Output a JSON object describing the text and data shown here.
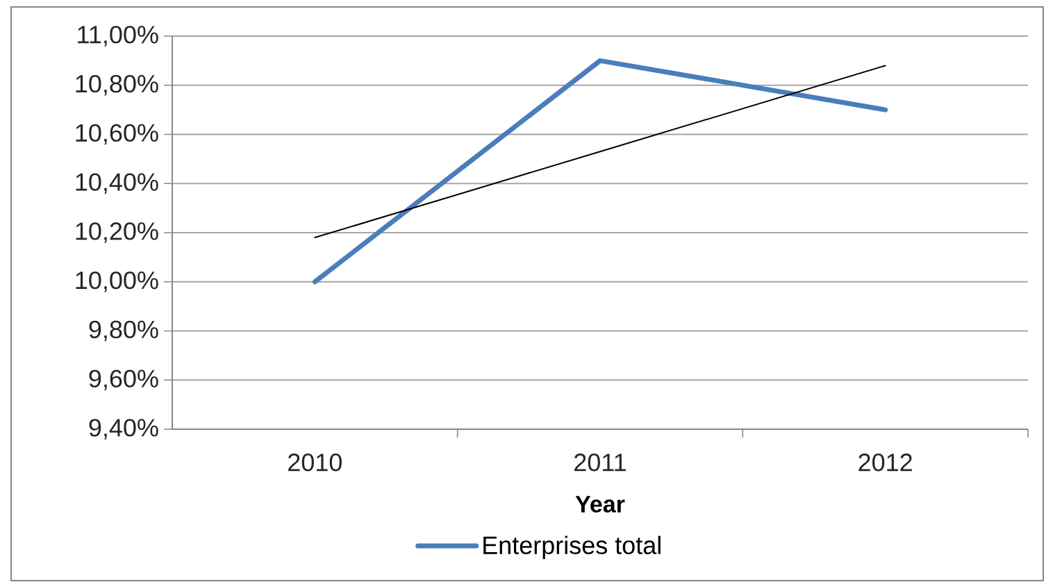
{
  "chart_data": {
    "type": "line",
    "xlabel": "Year",
    "categories": [
      "2010",
      "2011",
      "2012"
    ],
    "series": [
      {
        "name": "Enterprises total",
        "color": "#4a7ebb",
        "values": [
          10.0,
          10.9,
          10.7
        ]
      },
      {
        "color": "#000000",
        "values": [
          10.18,
          10.53,
          10.88
        ]
      }
    ],
    "ylim": [
      9.4,
      11.0
    ],
    "yticks": [
      {
        "value": 9.4,
        "label": "9,40%"
      },
      {
        "value": 9.6,
        "label": "9,60%"
      },
      {
        "value": 9.8,
        "label": "9,80%"
      },
      {
        "value": 10.0,
        "label": "10,00%"
      },
      {
        "value": 10.2,
        "label": "10,20%"
      },
      {
        "value": 10.4,
        "label": "10,40%"
      },
      {
        "value": 10.6,
        "label": "10,60%"
      },
      {
        "value": 10.8,
        "label": "10,80%"
      },
      {
        "value": 11.0,
        "label": "11,00%"
      }
    ],
    "grid": "y",
    "legend": "bottom",
    "marker": "none",
    "line_style": "solid"
  }
}
